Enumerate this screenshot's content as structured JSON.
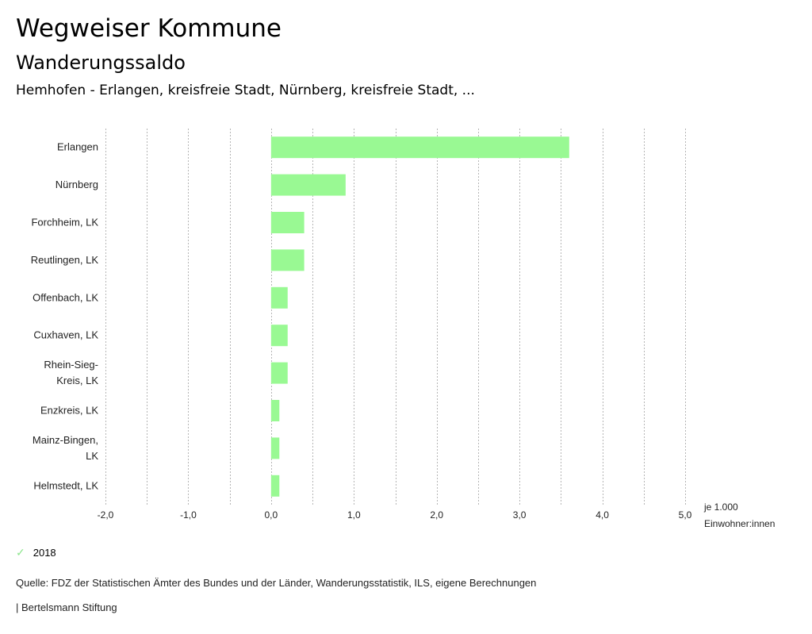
{
  "header": {
    "title": "Wegweiser Kommune",
    "subtitle": "Wanderungssaldo",
    "region": "Hemhofen - Erlangen, kreisfreie Stadt, Nürnberg, kreisfreie Stadt, ..."
  },
  "chart_data": {
    "type": "bar",
    "orientation": "horizontal",
    "title": "Wanderungssaldo",
    "categories": [
      [
        "Erlangen"
      ],
      [
        "Nürnberg"
      ],
      [
        "Forchheim, LK"
      ],
      [
        "Reutlingen, LK"
      ],
      [
        "Offenbach, LK"
      ],
      [
        "Cuxhaven, LK"
      ],
      [
        "Rhein-Sieg-",
        "Kreis, LK"
      ],
      [
        "Enzkreis, LK"
      ],
      [
        "Mainz-Bingen,",
        "LK"
      ],
      [
        "Helmstedt, LK"
      ]
    ],
    "series": [
      {
        "name": "2018",
        "color": "#99f993",
        "values": [
          3.6,
          0.9,
          0.4,
          0.4,
          0.2,
          0.2,
          0.2,
          0.1,
          0.1,
          0.1
        ]
      }
    ],
    "xlim": [
      -2.0,
      5.0
    ],
    "xticks": [
      -2.0,
      -1.0,
      0.0,
      1.0,
      2.0,
      3.0,
      4.0,
      5.0
    ],
    "xtick_labels": [
      "-2,0",
      "-1,0",
      "0,0",
      "1,0",
      "2,0",
      "3,0",
      "4,0",
      "5,0"
    ],
    "minor_gridlines_step": 0.5,
    "grid": true,
    "unit_label": [
      "je 1.000",
      "Einwohner:innen"
    ],
    "legend_position": "bottom-left"
  },
  "legend": {
    "items": [
      {
        "label": "2018",
        "icon": "check-icon",
        "color": "#99f993"
      }
    ]
  },
  "footer": {
    "source": "Quelle: FDZ der Statistischen Ämter des Bundes und der Länder, Wanderungsstatistik, ILS, eigene Berechnungen",
    "credit": "| Bertelsmann Stiftung"
  }
}
